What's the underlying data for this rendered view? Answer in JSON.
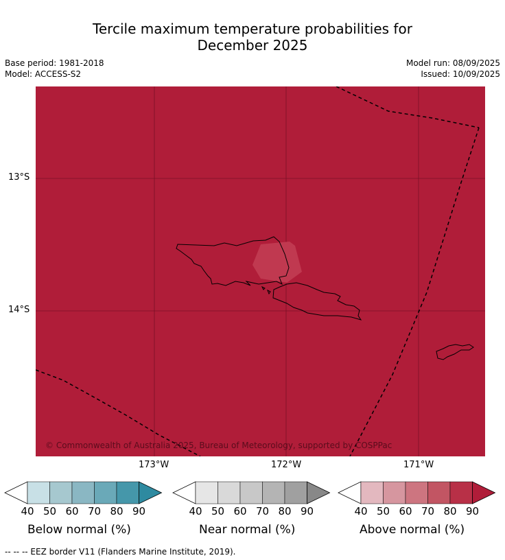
{
  "title_line1": "Tercile maximum temperature probabilities for",
  "title_line2": "December 2025",
  "meta": {
    "base_period": "Base period: 1981-2018",
    "model": "Model: ACCESS-S2",
    "model_run": "Model run: 08/09/2025",
    "issued": "Issued: 10/09/2025"
  },
  "axes": {
    "lat_labels": [
      "13°S",
      "14°S"
    ],
    "lon_labels": [
      "173°W",
      "172°W",
      "171°W"
    ]
  },
  "copyright": "© Commonwealth of Australia 2025, Bureau of Meteorology, supported by COSPPac",
  "colorbars": [
    {
      "title": "Below normal (%)",
      "ticks": [
        "40",
        "50",
        "60",
        "70",
        "80",
        "90"
      ],
      "colors": [
        "#ffffff",
        "#c8e0e6",
        "#a6c8cf",
        "#8ab7c3",
        "#6aa9b8",
        "#4597aa",
        "#2e8aa0"
      ]
    },
    {
      "title": "Near normal (%)",
      "ticks": [
        "40",
        "50",
        "60",
        "70",
        "80",
        "90"
      ],
      "colors": [
        "#ffffff",
        "#e6e6e6",
        "#d9d9d9",
        "#c8c8c8",
        "#b4b4b4",
        "#a0a0a0",
        "#888888"
      ]
    },
    {
      "title": "Above normal (%)",
      "ticks": [
        "40",
        "50",
        "60",
        "70",
        "80",
        "90"
      ],
      "colors": [
        "#ffffff",
        "#e3b8bf",
        "#d6969f",
        "#cd7580",
        "#c25563",
        "#b83047",
        "#b01d39"
      ]
    }
  ],
  "footnote": "--  --  -- EEZ border V11 (Flanders Marine Institute, 2019).",
  "colors": {
    "map_fill": "#b01d39",
    "patch_fill": "#c03950"
  }
}
